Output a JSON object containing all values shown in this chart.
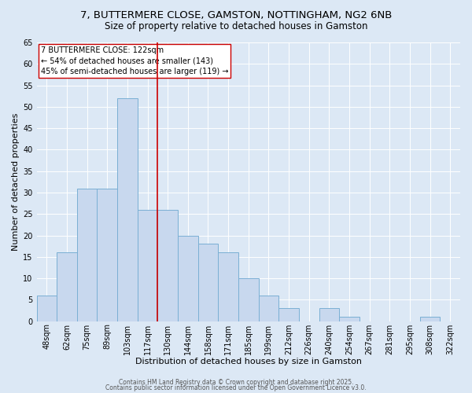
{
  "title": "7, BUTTERMERE CLOSE, GAMSTON, NOTTINGHAM, NG2 6NB",
  "subtitle": "Size of property relative to detached houses in Gamston",
  "xlabel": "Distribution of detached houses by size in Gamston",
  "ylabel": "Number of detached properties",
  "categories": [
    "48sqm",
    "62sqm",
    "75sqm",
    "89sqm",
    "103sqm",
    "117sqm",
    "130sqm",
    "144sqm",
    "158sqm",
    "171sqm",
    "185sqm",
    "199sqm",
    "212sqm",
    "226sqm",
    "240sqm",
    "254sqm",
    "267sqm",
    "281sqm",
    "295sqm",
    "308sqm",
    "322sqm"
  ],
  "values": [
    6,
    16,
    31,
    31,
    52,
    26,
    26,
    20,
    18,
    16,
    10,
    6,
    3,
    0,
    3,
    1,
    0,
    0,
    0,
    1,
    0
  ],
  "bar_color": "#c8d8ee",
  "bar_edge_color": "#7aafd4",
  "vline_x": 5.5,
  "vline_color": "#cc0000",
  "annotation_text": "7 BUTTERMERE CLOSE: 122sqm\n← 54% of detached houses are smaller (143)\n45% of semi-detached houses are larger (119) →",
  "annotation_box_color": "#ffffff",
  "annotation_box_edge": "#cc0000",
  "ylim": [
    0,
    65
  ],
  "yticks": [
    0,
    5,
    10,
    15,
    20,
    25,
    30,
    35,
    40,
    45,
    50,
    55,
    60,
    65
  ],
  "background_color": "#dce8f5",
  "grid_color": "#ffffff",
  "footer_line1": "Contains HM Land Registry data © Crown copyright and database right 2025.",
  "footer_line2": "Contains public sector information licensed under the Open Government Licence v3.0.",
  "title_fontsize": 9.5,
  "subtitle_fontsize": 8.5,
  "axis_label_fontsize": 8,
  "tick_fontsize": 7,
  "annotation_fontsize": 7,
  "footer_fontsize": 5.5
}
